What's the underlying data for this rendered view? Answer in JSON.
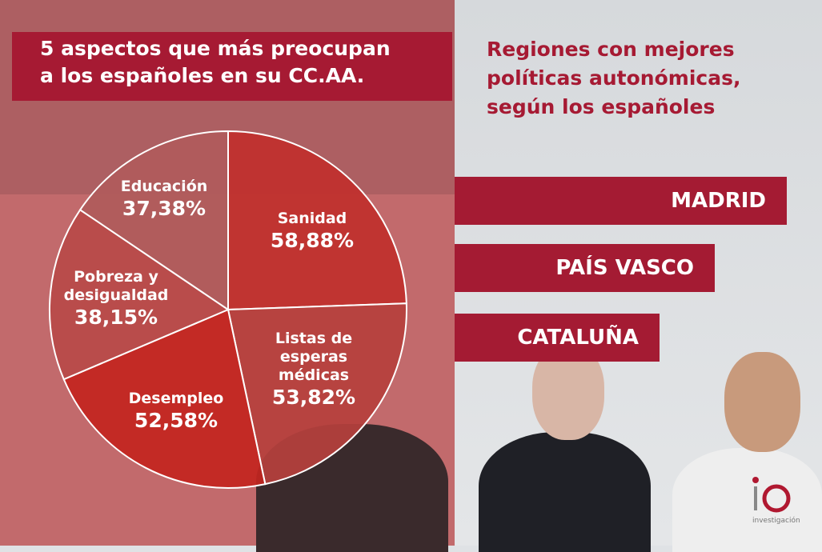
{
  "left_title": {
    "line1": "5 aspectos que más preocupan",
    "line2": "a los españoles en su CC.AA."
  },
  "right_title": {
    "line1": "Regiones con mejores",
    "line2": "políticas autonómicas,",
    "line3": "según los españoles"
  },
  "regions": [
    "MADRID",
    "PAÍS VASCO",
    "CATALUÑA"
  ],
  "logo": {
    "mark": "io",
    "text": "investigación"
  },
  "colors": {
    "brand": "#a61a33",
    "background_right": "#dfe2e5"
  },
  "chart_data": {
    "type": "pie",
    "title": "5 aspectos que más preocupan a los españoles en su CC.AA.",
    "categories": [
      "Sanidad",
      "Listas de esperas médicas",
      "Desempleo",
      "Pobreza y desigualdad",
      "Educación"
    ],
    "values": [
      58.88,
      53.82,
      52.58,
      38.15,
      37.38
    ],
    "value_labels": [
      "58,88%",
      "53,82%",
      "52,58%",
      "38,15%",
      "37,38%"
    ],
    "label_lines": [
      [
        "Sanidad"
      ],
      [
        "Listas de",
        "esperas",
        "médicas"
      ],
      [
        "Desempleo"
      ],
      [
        "Pobreza y",
        "desigualdad"
      ],
      [
        "Educación"
      ]
    ],
    "slice_colors": [
      "#c0302c",
      "#b6403d",
      "#c32520",
      "#b84a49",
      "#b05b5b"
    ]
  }
}
